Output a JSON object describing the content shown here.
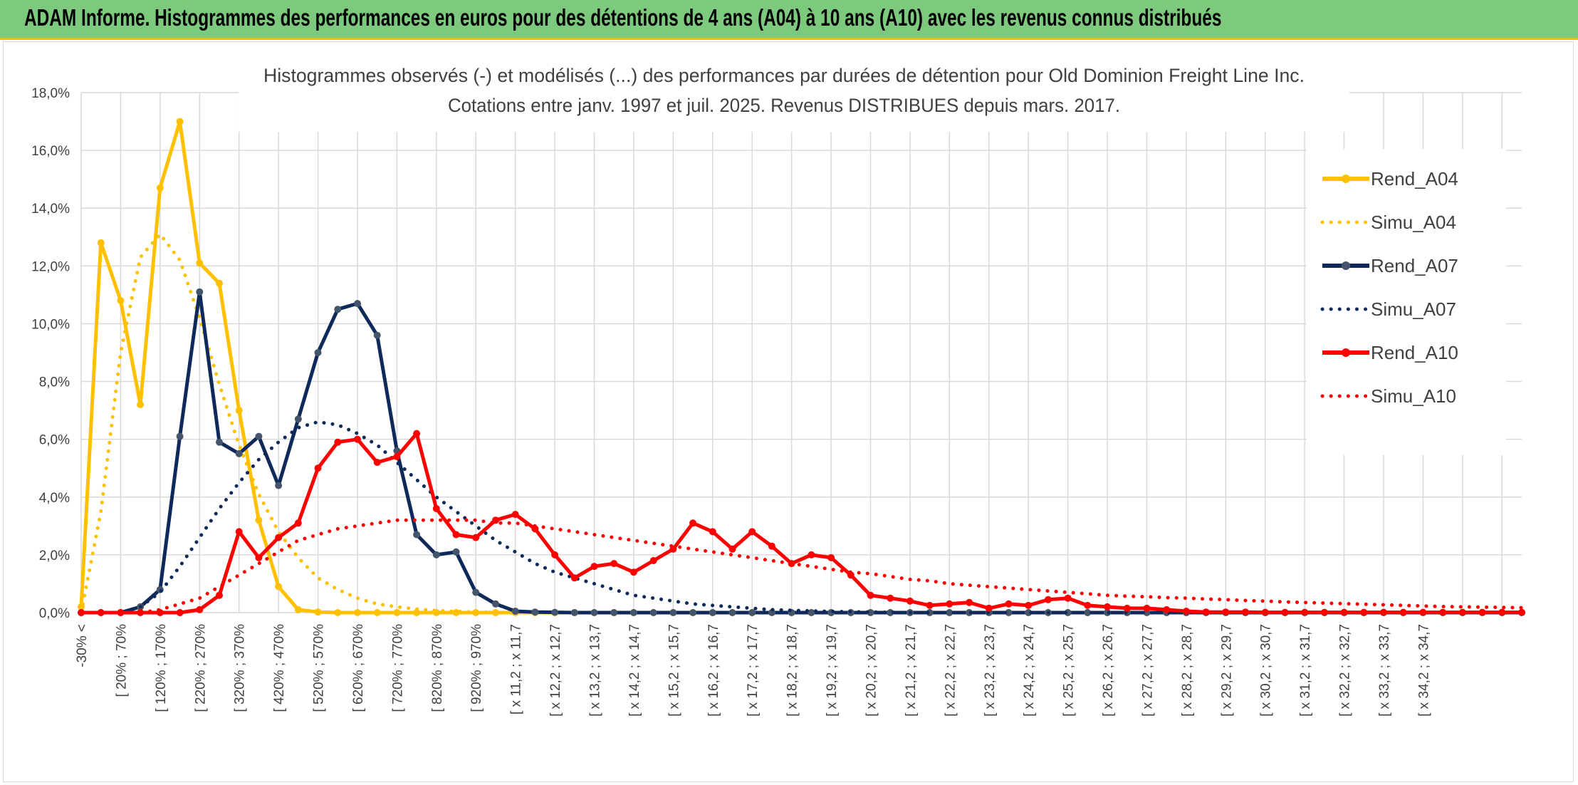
{
  "header": {
    "title": "ADAM Informe. Histogrammes des performances en euros pour des détentions de 4 ans (A04) à 10 ans (A10) avec les revenus connus distribués"
  },
  "colors": {
    "banner": "#7dc97d",
    "A04": "#ffc000",
    "A07": "#0f2a5a",
    "A07_marker": "#44546a",
    "A10": "#ff0000",
    "grid": "#d9d9d9",
    "text": "#404040"
  },
  "chart_data": {
    "type": "line",
    "title": "Histogrammes observés (-) et modélisés (...) des performances par durées de détention pour Old Dominion Freight Line Inc.",
    "subtitle": "Cotations entre janv. 1997 et juil. 2025. Revenus DISTRIBUES depuis mars. 2017.",
    "y_ticks": [
      "0,0%",
      "2,0%",
      "4,0%",
      "6,0%",
      "8,0%",
      "10,0%",
      "12,0%",
      "14,0%",
      "16,0%",
      "18,0%"
    ],
    "ylim": [
      0,
      18
    ],
    "grid": true,
    "legend_position": "right",
    "x_tick_labels": [
      "-30% <",
      "[ 20% ; 70%",
      "[ 120% ; 170%",
      "[ 220% ; 270%",
      "[ 320% ; 370%",
      "[ 420% ; 470%",
      "[ 520% ; 570%",
      "[ 620% ; 670%",
      "[ 720% ; 770%",
      "[ 820% ; 870%",
      "[ 920% ; 970%",
      "[ x 11,2 ; x 11,7",
      "[ x 12,2 ; x 12,7",
      "[ x 13,2 ; x 13,7",
      "[ x 14,2 ; x 14,7",
      "[ x 15,2 ; x 15,7",
      "[ x 16,2 ; x 16,7",
      "[ x 17,2 ; x 17,7",
      "[ x 18,2 ; x 18,7",
      "[ x 19,2 ; x 19,7",
      "[ x 20,2 ; x 20,7",
      "[ x 21,2 ; x 21,7",
      "[ x 22,2 ; x 22,7",
      "[ x 23,2 ; x 23,7",
      "[ x 24,2 ; x 24,7",
      "[ x 25,2 ; x 25,7",
      "[ x 26,2 ; x 26,7",
      "[ x 27,2 ; x 27,7",
      "[ x 28,2 ; x 28,7",
      "[ x 29,2 ; x 29,7",
      "[ x 30,2 ; x 30,7",
      "[ x 31,2 ; x 31,7",
      "[ x 32,2 ; x 32,7",
      "[ x 33,2 ; x 33,7",
      "[ x 34,2 ; x 34,7"
    ],
    "series": [
      {
        "name": "Rend_A04",
        "style": "solid",
        "color": "#ffc000",
        "markers": true,
        "values": [
          0.2,
          12.8,
          10.8,
          7.2,
          14.7,
          17.0,
          12.1,
          11.4,
          7.0,
          3.2,
          0.9,
          0.1,
          0.02,
          0,
          0,
          0,
          0,
          0,
          0,
          0,
          0,
          0,
          0,
          0,
          0,
          0,
          0,
          0,
          0,
          0,
          0,
          0,
          0,
          0,
          0,
          0,
          0,
          0,
          0,
          0,
          0,
          0,
          0,
          0,
          0,
          0,
          0,
          0,
          0,
          0,
          0,
          0,
          0,
          0,
          0,
          0,
          0,
          0,
          0,
          0,
          0,
          0,
          0,
          0,
          0,
          0,
          0,
          0,
          0,
          0,
          0,
          0,
          0,
          0
        ]
      },
      {
        "name": "Simu_A04",
        "style": "dotted",
        "color": "#ffc000",
        "markers": false,
        "values": [
          0,
          3.5,
          9.0,
          12.3,
          13.1,
          12.2,
          10.2,
          7.9,
          5.8,
          4.1,
          2.8,
          1.9,
          1.2,
          0.8,
          0.5,
          0.3,
          0.2,
          0.12,
          0.07,
          0.04,
          0.02,
          0.01,
          0,
          0,
          0,
          0,
          0,
          0,
          0,
          0,
          0,
          0,
          0,
          0,
          0,
          0,
          0,
          0,
          0,
          0,
          0,
          0,
          0,
          0,
          0,
          0,
          0,
          0,
          0,
          0,
          0,
          0,
          0,
          0,
          0,
          0,
          0,
          0,
          0,
          0,
          0,
          0,
          0,
          0,
          0,
          0,
          0,
          0,
          0,
          0,
          0,
          0,
          0,
          0
        ]
      },
      {
        "name": "Rend_A07",
        "style": "solid",
        "color": "#0f2a5a",
        "markers": true,
        "values": [
          0,
          0,
          0,
          0.2,
          0.8,
          6.1,
          11.1,
          5.9,
          5.5,
          6.1,
          4.4,
          6.7,
          9.0,
          10.5,
          10.7,
          9.6,
          5.6,
          2.7,
          2.0,
          2.1,
          0.7,
          0.3,
          0.05,
          0.02,
          0.01,
          0,
          0,
          0,
          0,
          0,
          0,
          0,
          0,
          0,
          0,
          0,
          0,
          0,
          0,
          0,
          0,
          0,
          0,
          0,
          0,
          0,
          0,
          0,
          0,
          0,
          0,
          0,
          0,
          0,
          0,
          0,
          0,
          0,
          0,
          0,
          0,
          0,
          0,
          0,
          0,
          0,
          0,
          0,
          0,
          0,
          0,
          0,
          0,
          0
        ]
      },
      {
        "name": "Simu_A07",
        "style": "dotted",
        "color": "#0f2a5a",
        "markers": false,
        "values": [
          0,
          0,
          0,
          0.2,
          0.7,
          1.6,
          2.6,
          3.6,
          4.5,
          5.3,
          5.9,
          6.4,
          6.6,
          6.5,
          6.2,
          5.8,
          5.2,
          4.6,
          4.0,
          3.5,
          3.0,
          2.5,
          2.1,
          1.7,
          1.4,
          1.2,
          1.0,
          0.8,
          0.6,
          0.5,
          0.4,
          0.3,
          0.25,
          0.2,
          0.15,
          0.1,
          0.08,
          0.06,
          0.04,
          0.03,
          0.02,
          0.01,
          0,
          0,
          0,
          0,
          0,
          0,
          0,
          0,
          0,
          0,
          0,
          0,
          0,
          0,
          0,
          0,
          0,
          0,
          0,
          0,
          0,
          0,
          0,
          0,
          0,
          0,
          0,
          0,
          0,
          0,
          0
        ]
      },
      {
        "name": "Rend_A10",
        "style": "solid",
        "color": "#ff0000",
        "markers": true,
        "values": [
          0,
          0,
          0,
          0,
          0,
          0,
          0.1,
          0.6,
          2.8,
          1.9,
          2.6,
          3.1,
          5.0,
          5.9,
          6.0,
          5.2,
          5.4,
          6.2,
          3.6,
          2.7,
          2.6,
          3.2,
          3.4,
          2.9,
          2.0,
          1.2,
          1.6,
          1.7,
          1.4,
          1.8,
          2.2,
          3.1,
          2.8,
          2.2,
          2.8,
          2.3,
          1.7,
          2.0,
          1.9,
          1.3,
          0.6,
          0.5,
          0.4,
          0.25,
          0.3,
          0.35,
          0.15,
          0.3,
          0.25,
          0.45,
          0.5,
          0.25,
          0.2,
          0.15,
          0.15,
          0.1,
          0.05,
          0.02,
          0.02,
          0.02,
          0.01,
          0.01,
          0.01,
          0.01,
          0.01,
          0.01,
          0.01,
          0.01,
          0.01,
          0.01,
          0.01,
          0.01,
          0.01,
          0.01
        ]
      },
      {
        "name": "Simu_A10",
        "style": "dotted",
        "color": "#ff0000",
        "markers": false,
        "values": [
          0,
          0,
          0,
          0,
          0.1,
          0.3,
          0.5,
          0.9,
          1.3,
          1.7,
          2.1,
          2.5,
          2.7,
          2.9,
          3.0,
          3.1,
          3.2,
          3.2,
          3.2,
          3.2,
          3.2,
          3.1,
          3.1,
          3.0,
          2.9,
          2.8,
          2.7,
          2.6,
          2.5,
          2.4,
          2.3,
          2.2,
          2.1,
          2.0,
          1.9,
          1.8,
          1.7,
          1.6,
          1.5,
          1.4,
          1.35,
          1.25,
          1.15,
          1.1,
          1.0,
          0.95,
          0.9,
          0.85,
          0.8,
          0.75,
          0.7,
          0.65,
          0.6,
          0.57,
          0.55,
          0.52,
          0.5,
          0.47,
          0.45,
          0.42,
          0.4,
          0.37,
          0.35,
          0.33,
          0.31,
          0.29,
          0.27,
          0.25,
          0.23,
          0.21,
          0.2,
          0.19,
          0.18,
          0.17
        ]
      }
    ]
  }
}
